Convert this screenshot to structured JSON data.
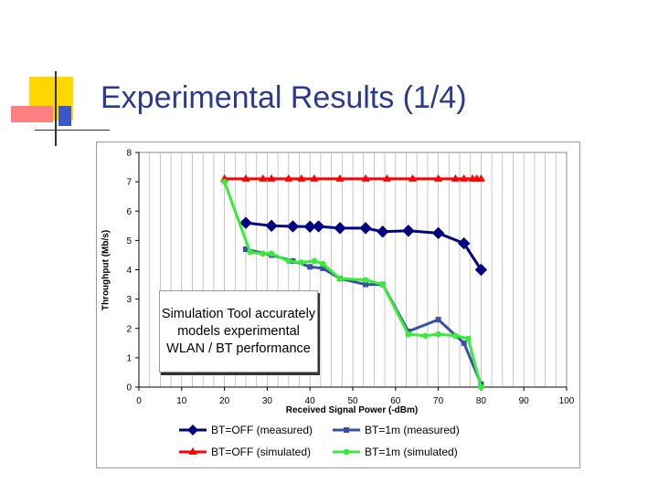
{
  "slide": {
    "title": "Experimental Results (1/4)",
    "annotation": "Simulation Tool accurately models experimental WLAN / BT performance"
  },
  "colors": {
    "title": "#2b3a8f",
    "deco_yellow": "#ffd700",
    "deco_red": "#ff6b6b",
    "deco_blue": "#3b56c8"
  },
  "chart_data": {
    "type": "line",
    "title": "",
    "xlabel": "Received Signal Power (-dBm)",
    "ylabel": "Throughput (Mb/s)",
    "xlim": [
      0,
      100
    ],
    "ylim": [
      0,
      8
    ],
    "xticks": [
      0,
      10,
      20,
      30,
      40,
      50,
      60,
      70,
      80,
      90,
      100
    ],
    "yticks": [
      0,
      1,
      2,
      3,
      4,
      5,
      6,
      7,
      8
    ],
    "grid": "vertical",
    "legend": "bottom",
    "series": [
      {
        "name": "BT=OFF (measured)",
        "color": "#000080",
        "marker": "diamond",
        "x": [
          25,
          31,
          36,
          40,
          42,
          47,
          53,
          57,
          63,
          70,
          76,
          80
        ],
        "y": [
          5.6,
          5.5,
          5.48,
          5.47,
          5.48,
          5.42,
          5.42,
          5.3,
          5.33,
          5.25,
          4.9,
          4.0
        ]
      },
      {
        "name": "BT=1m (measured)",
        "color": "#3b4fa8",
        "marker": "square",
        "x": [
          25,
          31,
          36,
          40,
          43,
          47,
          53,
          57,
          63,
          70,
          76,
          80
        ],
        "y": [
          4.7,
          4.5,
          4.3,
          4.1,
          4.05,
          3.7,
          3.5,
          3.5,
          1.9,
          2.3,
          1.5,
          0.1
        ]
      },
      {
        "name": "BT=OFF (simulated)",
        "color": "#ff0000",
        "marker": "triangle",
        "x": [
          20,
          25,
          29,
          31,
          35,
          38,
          41,
          47,
          53,
          58,
          64,
          70,
          74,
          76,
          78,
          79,
          80
        ],
        "y": [
          7.1,
          7.1,
          7.1,
          7.1,
          7.1,
          7.1,
          7.1,
          7.1,
          7.1,
          7.1,
          7.1,
          7.1,
          7.1,
          7.1,
          7.1,
          7.1,
          7.1
        ]
      },
      {
        "name": "BT=1m (simulated)",
        "color": "#33ee33",
        "marker": "circle",
        "x": [
          20,
          26,
          29,
          31,
          35,
          38,
          41,
          43,
          47,
          53,
          57,
          63,
          67,
          70,
          74,
          77,
          80
        ],
        "y": [
          7.0,
          4.6,
          4.55,
          4.55,
          4.3,
          4.25,
          4.3,
          4.2,
          3.7,
          3.65,
          3.5,
          1.8,
          1.75,
          1.8,
          1.75,
          1.65,
          0.0
        ]
      }
    ]
  }
}
